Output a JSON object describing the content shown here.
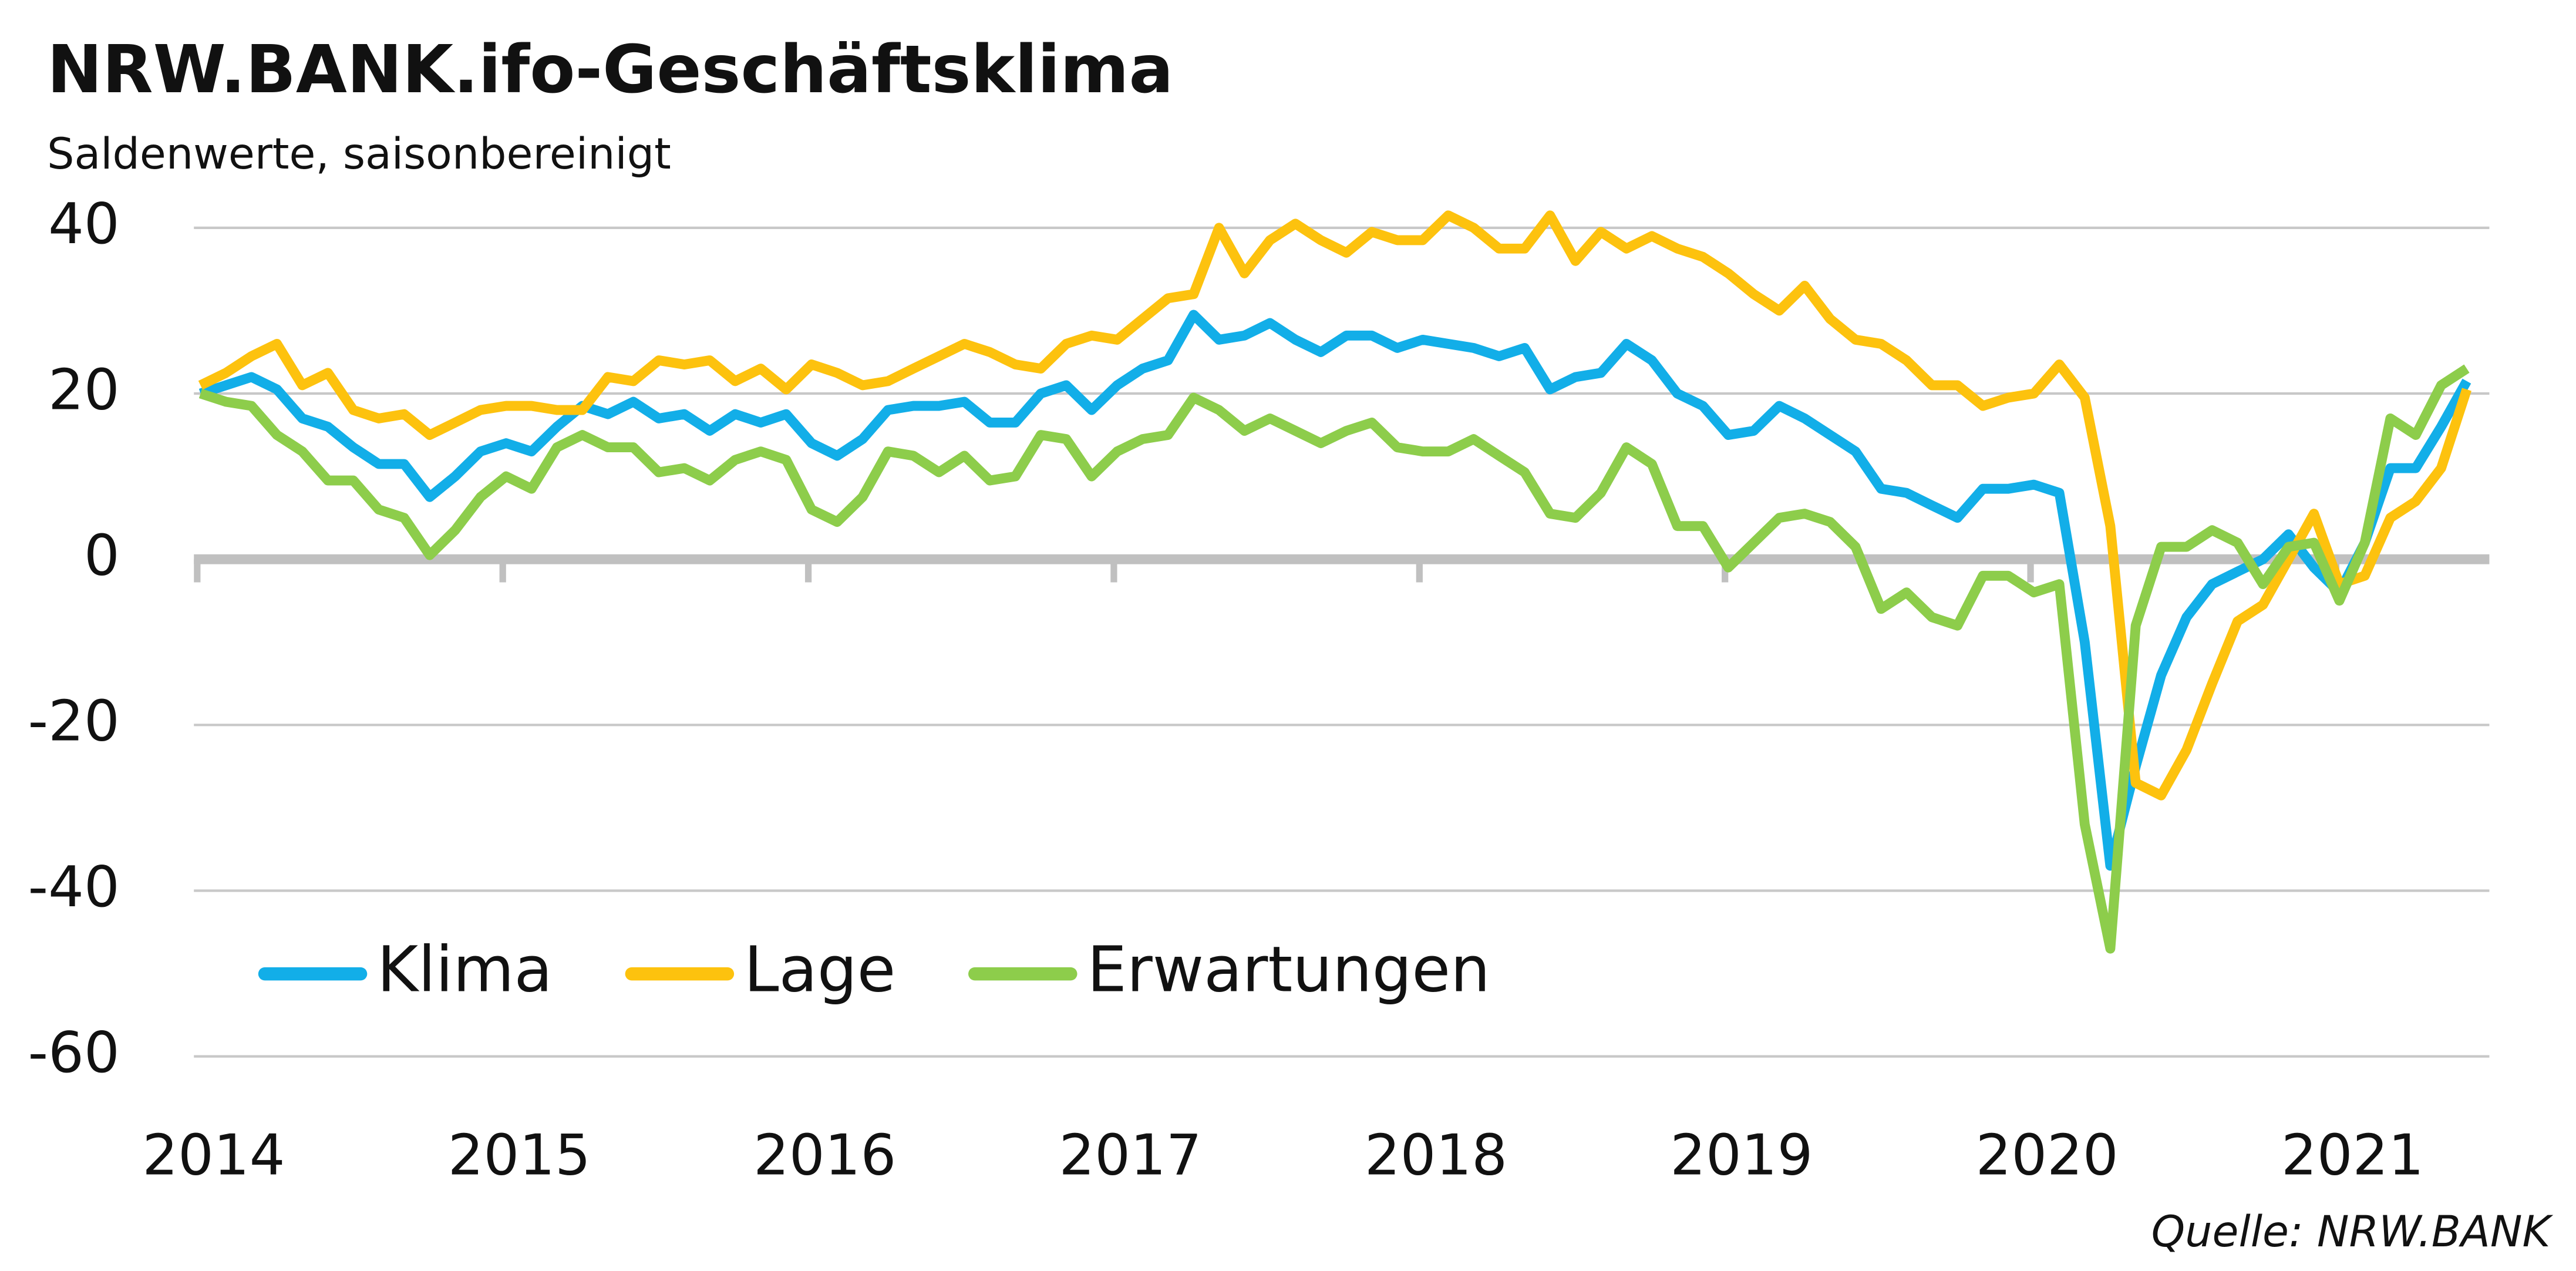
{
  "chart_data": {
    "type": "line",
    "title": "NRW.BANK.ifo-Geschäftsklima",
    "subtitle": "Saldenwerte, saisonbereinigt",
    "source": "Quelle: NRW.BANK",
    "categories": [
      "2014",
      null,
      null,
      null,
      null,
      null,
      null,
      null,
      null,
      null,
      null,
      null,
      "2015",
      null,
      null,
      null,
      null,
      null,
      null,
      null,
      null,
      null,
      null,
      null,
      "2016",
      null,
      null,
      null,
      null,
      null,
      null,
      null,
      null,
      null,
      null,
      null,
      "2017",
      null,
      null,
      null,
      null,
      null,
      null,
      null,
      null,
      null,
      null,
      null,
      "2018",
      null,
      null,
      null,
      null,
      null,
      null,
      null,
      null,
      null,
      null,
      null,
      "2019",
      null,
      null,
      null,
      null,
      null,
      null,
      null,
      null,
      null,
      null,
      null,
      "2020",
      null,
      null,
      null,
      null,
      null,
      null,
      null,
      null,
      null,
      null,
      null,
      "2021",
      null,
      null,
      null,
      null,
      null
    ],
    "series": [
      {
        "name": "Klima",
        "color": "#12aee8",
        "values": [
          20,
          21,
          22,
          20.5,
          17,
          16,
          13.5,
          11.5,
          11.5,
          7.5,
          10,
          13,
          14,
          13,
          16,
          18.5,
          17.5,
          19,
          17,
          17.5,
          15.5,
          17.5,
          16.5,
          17.5,
          14,
          12.5,
          14.5,
          18,
          18.5,
          18.5,
          19,
          16.5,
          16.5,
          20,
          21,
          18,
          21,
          23,
          24,
          29.5,
          26.5,
          27,
          28.5,
          26.5,
          25,
          27,
          27,
          25.5,
          26.5,
          26,
          25.5,
          24.5,
          25.5,
          20.5,
          22,
          22.5,
          26,
          24,
          20,
          18.5,
          15,
          15.5,
          18.5,
          17,
          15,
          13,
          8.5,
          8,
          6.5,
          5,
          8.5,
          8.5,
          9,
          8,
          -10,
          -37,
          -25,
          -14,
          -7,
          -3,
          -1.5,
          0,
          3,
          -1,
          -4,
          2,
          11,
          11,
          16,
          21.5
        ]
      },
      {
        "name": "Lage",
        "color": "#fdc20e",
        "values": [
          21,
          22.5,
          24.5,
          26,
          21,
          22.5,
          18,
          17,
          17.5,
          15,
          16.5,
          18,
          18.5,
          18.5,
          18,
          18,
          22,
          21.5,
          24,
          23.5,
          24,
          21.5,
          23,
          20.5,
          23.5,
          22.5,
          21,
          21.5,
          23,
          24.5,
          26,
          25,
          23.5,
          23,
          26,
          27,
          26.5,
          29,
          31.5,
          32,
          40,
          34.5,
          38.5,
          40.5,
          38.5,
          37,
          39.5,
          38.5,
          38.5,
          41.5,
          40,
          37.5,
          37.5,
          41.5,
          36,
          39.5,
          37.5,
          39,
          37.5,
          36.5,
          34.5,
          32,
          30,
          33,
          29,
          26.5,
          26,
          24,
          21,
          21,
          18.5,
          19.5,
          20,
          23.5,
          19.5,
          4,
          -27,
          -28.5,
          -23,
          -15,
          -7.5,
          -5.5,
          0,
          5.5,
          -3,
          -2,
          5,
          7,
          11,
          20.5
        ]
      },
      {
        "name": "Erwartungen",
        "color": "#8dcd4b",
        "values": [
          20,
          19,
          18.5,
          15,
          13,
          9.5,
          9.5,
          6,
          5,
          0.5,
          3.5,
          7.5,
          10,
          8.5,
          13.5,
          15,
          13.5,
          13.5,
          10.5,
          11,
          9.5,
          12,
          13,
          12,
          6,
          4.5,
          7.5,
          13,
          12.5,
          10.5,
          12.5,
          9.5,
          10,
          15,
          14.5,
          10,
          13,
          14.5,
          15,
          19.5,
          18,
          15.5,
          17,
          15.5,
          14,
          15.5,
          16.5,
          13.5,
          13,
          13,
          14.5,
          12.5,
          10.5,
          5.5,
          5,
          8,
          13.5,
          11.5,
          4,
          4,
          -1,
          2,
          5,
          5.5,
          4.5,
          1.5,
          -6,
          -4,
          -7,
          -8,
          -2,
          -2,
          -4,
          -3,
          -32,
          -47,
          -8,
          1.5,
          1.5,
          3.5,
          2,
          -3,
          1.5,
          2,
          -5,
          2,
          17,
          15,
          21,
          23
        ]
      }
    ],
    "ylim": [
      -60,
      40
    ],
    "yticks": [
      -60,
      -40,
      -20,
      0,
      20,
      40
    ],
    "grid": true,
    "legend": "lower left"
  }
}
